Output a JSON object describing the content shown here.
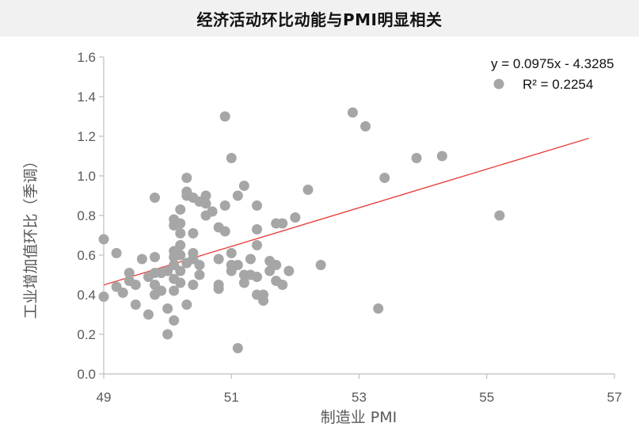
{
  "chart_data": {
    "type": "scatter",
    "title": "经济活动环比动能与PMI明显相关",
    "xlabel": "制造业 PMI",
    "ylabel": "工业增加值环比（季调）",
    "xlim": [
      49,
      57
    ],
    "ylim": [
      0.0,
      1.6
    ],
    "x_ticks": [
      "49",
      "51",
      "53",
      "55",
      "57"
    ],
    "y_ticks": [
      "0.0",
      "0.2",
      "0.4",
      "0.6",
      "0.8",
      "1.0",
      "1.2",
      "1.4",
      "1.6"
    ],
    "grid": false,
    "legend_position": "top-right",
    "marker_color": "#a6a6a6",
    "trendline_color": "#e8413c",
    "trendline": {
      "equation": "y = 0.0975x - 4.3285",
      "r_squared": "R² = 0.2254",
      "slope": 0.0975,
      "intercept": -4.3285,
      "x_range": [
        49,
        56.6
      ]
    },
    "points": [
      [
        49.0,
        0.68
      ],
      [
        49.0,
        0.39
      ],
      [
        49.2,
        0.61
      ],
      [
        49.2,
        0.44
      ],
      [
        49.3,
        0.41
      ],
      [
        49.4,
        0.51
      ],
      [
        49.4,
        0.47
      ],
      [
        49.5,
        0.45
      ],
      [
        49.5,
        0.35
      ],
      [
        49.6,
        0.58
      ],
      [
        49.7,
        0.49
      ],
      [
        49.7,
        0.3
      ],
      [
        49.8,
        0.89
      ],
      [
        49.8,
        0.59
      ],
      [
        49.8,
        0.51
      ],
      [
        49.8,
        0.45
      ],
      [
        49.8,
        0.4
      ],
      [
        49.9,
        0.42
      ],
      [
        49.9,
        0.51
      ],
      [
        50.0,
        0.52
      ],
      [
        50.0,
        0.33
      ],
      [
        50.0,
        0.2
      ],
      [
        50.1,
        0.78
      ],
      [
        50.1,
        0.75
      ],
      [
        50.1,
        0.62
      ],
      [
        50.1,
        0.59
      ],
      [
        50.1,
        0.55
      ],
      [
        50.1,
        0.48
      ],
      [
        50.1,
        0.42
      ],
      [
        50.1,
        0.27
      ],
      [
        50.2,
        0.83
      ],
      [
        50.2,
        0.76
      ],
      [
        50.2,
        0.71
      ],
      [
        50.2,
        0.65
      ],
      [
        50.2,
        0.6
      ],
      [
        50.2,
        0.52
      ],
      [
        50.2,
        0.46
      ],
      [
        50.3,
        0.99
      ],
      [
        50.3,
        0.92
      ],
      [
        50.3,
        0.9
      ],
      [
        50.3,
        0.56
      ],
      [
        50.3,
        0.35
      ],
      [
        50.4,
        0.89
      ],
      [
        50.4,
        0.71
      ],
      [
        50.4,
        0.61
      ],
      [
        50.4,
        0.58
      ],
      [
        50.4,
        0.45
      ],
      [
        50.5,
        0.87
      ],
      [
        50.5,
        0.55
      ],
      [
        50.5,
        0.5
      ],
      [
        50.6,
        0.9
      ],
      [
        50.6,
        0.86
      ],
      [
        50.6,
        0.8
      ],
      [
        50.7,
        0.82
      ],
      [
        50.8,
        0.74
      ],
      [
        50.8,
        0.58
      ],
      [
        50.8,
        0.45
      ],
      [
        50.8,
        0.43
      ],
      [
        50.9,
        1.3
      ],
      [
        50.9,
        0.85
      ],
      [
        50.9,
        0.72
      ],
      [
        51.0,
        1.09
      ],
      [
        51.0,
        0.61
      ],
      [
        51.0,
        0.55
      ],
      [
        51.0,
        0.52
      ],
      [
        51.1,
        0.9
      ],
      [
        51.1,
        0.55
      ],
      [
        51.1,
        0.13
      ],
      [
        51.2,
        0.95
      ],
      [
        51.2,
        0.5
      ],
      [
        51.2,
        0.46
      ],
      [
        51.3,
        0.58
      ],
      [
        51.3,
        0.5
      ],
      [
        51.4,
        0.85
      ],
      [
        51.4,
        0.73
      ],
      [
        51.4,
        0.65
      ],
      [
        51.4,
        0.49
      ],
      [
        51.4,
        0.4
      ],
      [
        51.5,
        0.4
      ],
      [
        51.5,
        0.37
      ],
      [
        51.6,
        0.57
      ],
      [
        51.6,
        0.52
      ],
      [
        51.7,
        0.76
      ],
      [
        51.7,
        0.55
      ],
      [
        51.7,
        0.47
      ],
      [
        51.8,
        0.76
      ],
      [
        51.8,
        0.45
      ],
      [
        51.9,
        0.52
      ],
      [
        52.0,
        0.79
      ],
      [
        52.2,
        0.93
      ],
      [
        52.4,
        0.55
      ],
      [
        52.9,
        1.32
      ],
      [
        53.1,
        1.25
      ],
      [
        53.3,
        0.33
      ],
      [
        53.4,
        0.99
      ],
      [
        53.9,
        1.09
      ],
      [
        54.3,
        1.1
      ],
      [
        55.2,
        0.8
      ]
    ]
  }
}
